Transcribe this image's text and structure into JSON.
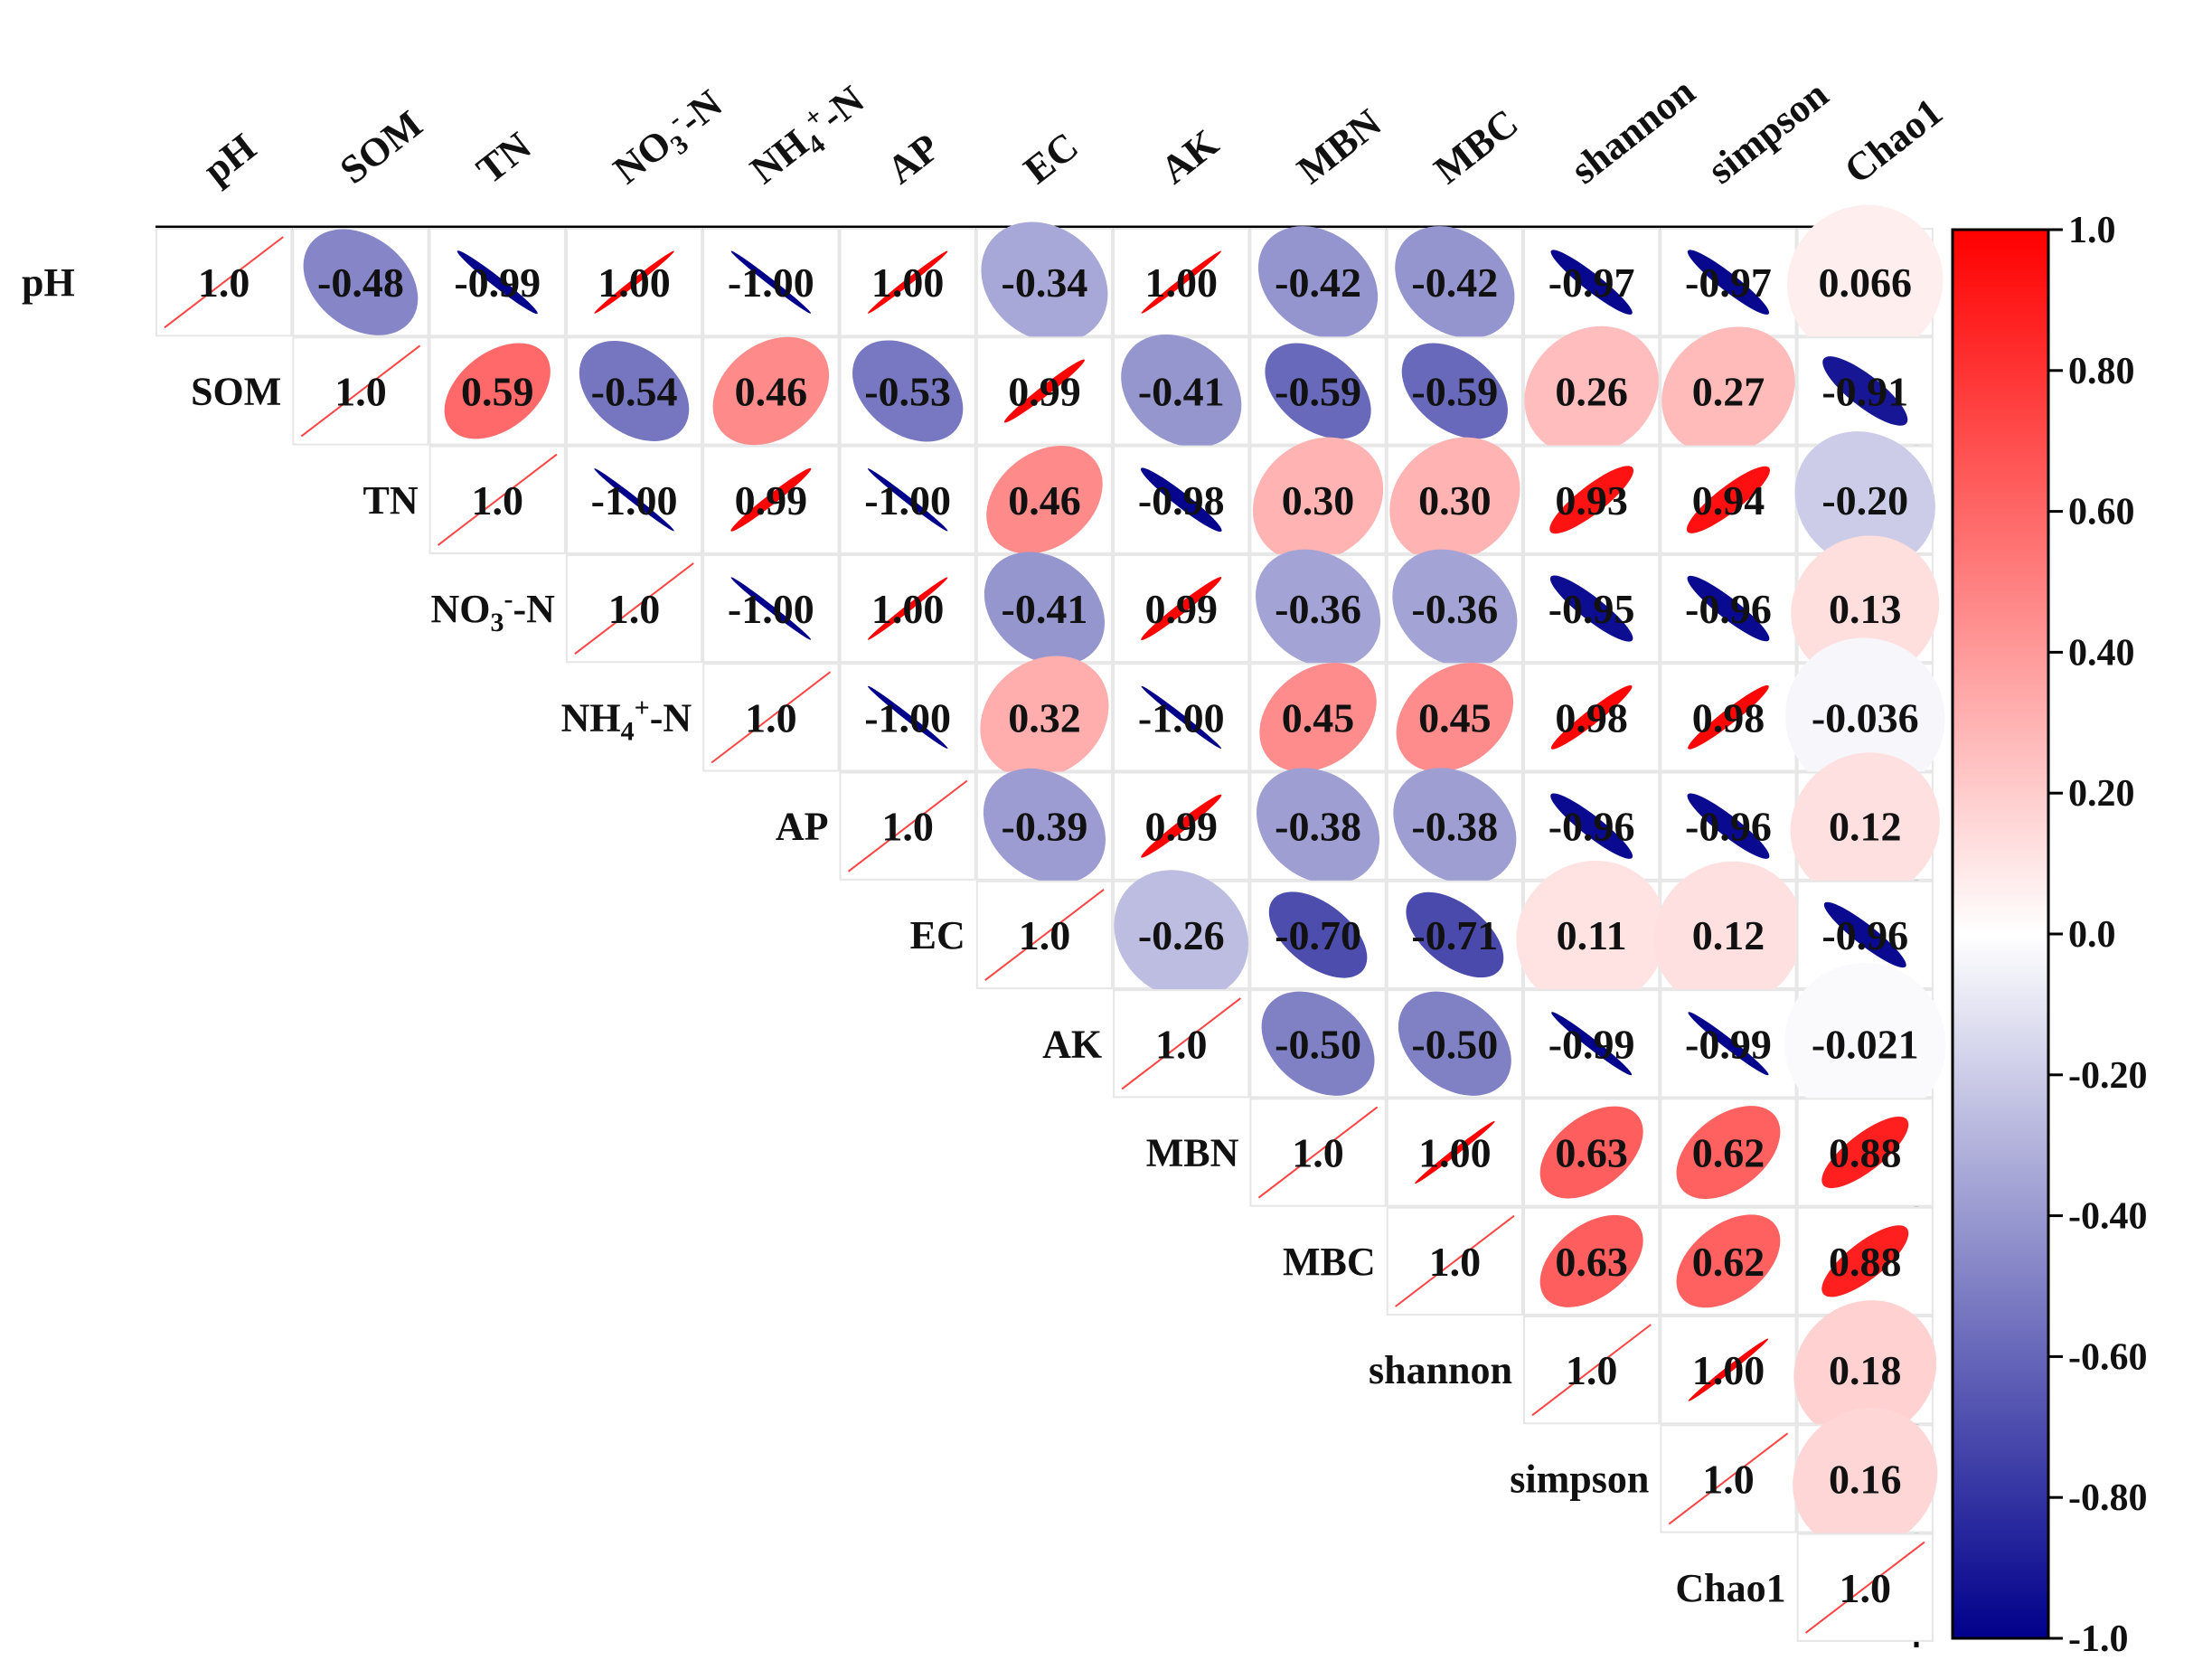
{
  "chart_data": {
    "type": "heatmap",
    "subtype": "correlation-ellipse-upper-triangle",
    "variables": [
      {
        "key": "pH",
        "label": "pH"
      },
      {
        "key": "SOM",
        "label": "SOM"
      },
      {
        "key": "TN",
        "label": "TN"
      },
      {
        "key": "NO3-N",
        "label": "NO3-N",
        "base": "NO",
        "sub": "3",
        "sup": "-",
        "suffix": "-N"
      },
      {
        "key": "NH4-N",
        "label": "NH4+-N",
        "base": "NH",
        "sub": "4",
        "sup": "+",
        "suffix": "-N"
      },
      {
        "key": "AP",
        "label": "AP"
      },
      {
        "key": "EC",
        "label": "EC"
      },
      {
        "key": "AK",
        "label": "AK"
      },
      {
        "key": "MBN",
        "label": "MBN"
      },
      {
        "key": "MBC",
        "label": "MBC"
      },
      {
        "key": "shannon",
        "label": "shannon"
      },
      {
        "key": "simpson",
        "label": "simpson"
      },
      {
        "key": "Chao1",
        "label": "Chao1"
      }
    ],
    "upper_triangle": [
      [
        1.0,
        -0.48,
        -0.99,
        1.0,
        -1.0,
        1.0,
        -0.34,
        1.0,
        -0.42,
        -0.42,
        -0.97,
        -0.97,
        0.066
      ],
      [
        1.0,
        0.59,
        -0.54,
        0.46,
        -0.53,
        0.99,
        -0.41,
        -0.59,
        -0.59,
        0.26,
        0.27,
        -0.91
      ],
      [
        1.0,
        -1.0,
        0.99,
        -1.0,
        0.46,
        -0.98,
        0.3,
        0.3,
        0.93,
        0.94,
        -0.2
      ],
      [
        1.0,
        -1.0,
        1.0,
        -0.41,
        0.99,
        -0.36,
        -0.36,
        -0.95,
        -0.96,
        0.13
      ],
      [
        1.0,
        -1.0,
        0.32,
        -1.0,
        0.45,
        0.45,
        0.98,
        0.98,
        -0.036
      ],
      [
        1.0,
        -0.39,
        0.99,
        -0.38,
        -0.38,
        -0.96,
        -0.96,
        0.12
      ],
      [
        1.0,
        -0.26,
        -0.7,
        -0.71,
        0.11,
        0.12,
        -0.96
      ],
      [
        1.0,
        -0.5,
        -0.5,
        -0.99,
        -0.99,
        -0.021
      ],
      [
        1.0,
        1.0,
        0.63,
        0.62,
        0.88
      ],
      [
        1.0,
        0.63,
        0.62,
        0.88
      ],
      [
        1.0,
        1.0,
        0.18
      ],
      [
        1.0,
        0.16
      ],
      [
        1.0
      ]
    ],
    "display_labels": [
      [
        "1.0",
        "-0.48",
        "-0.99",
        "1.00",
        "-1.00",
        "1.00",
        "-0.34",
        "1.00",
        "-0.42",
        "-0.42",
        "-0.97",
        "-0.97",
        "0.066"
      ],
      [
        "1.0",
        "0.59",
        "-0.54",
        "0.46",
        "-0.53",
        "0.99",
        "-0.41",
        "-0.59",
        "-0.59",
        "0.26",
        "0.27",
        "-0.91"
      ],
      [
        "1.0",
        "-1.00",
        "0.99",
        "-1.00",
        "0.46",
        "-0.98",
        "0.30",
        "0.30",
        "0.93",
        "0.94",
        "-0.20"
      ],
      [
        "1.0",
        "-1.00",
        "1.00",
        "-0.41",
        "0.99",
        "-0.36",
        "-0.36",
        "-0.95",
        "-0.96",
        "0.13"
      ],
      [
        "1.0",
        "-1.00",
        "0.32",
        "-1.00",
        "0.45",
        "0.45",
        "0.98",
        "0.98",
        "-0.036"
      ],
      [
        "1.0",
        "-0.39",
        "0.99",
        "-0.38",
        "-0.38",
        "-0.96",
        "-0.96",
        "0.12"
      ],
      [
        "1.0",
        "-0.26",
        "-0.70",
        "-0.71",
        "0.11",
        "0.12",
        "-0.96"
      ],
      [
        "1.0",
        "-0.50",
        "-0.50",
        "-0.99",
        "-0.99",
        "-0.021"
      ],
      [
        "1.0",
        "1.00",
        "0.63",
        "0.62",
        "0.88"
      ],
      [
        "1.0",
        "0.63",
        "0.62",
        "0.88"
      ],
      [
        "1.0",
        "1.00",
        "0.18"
      ],
      [
        "1.0",
        "0.16"
      ],
      [
        "1.0"
      ]
    ],
    "colorbar": {
      "range": [
        -1.0,
        1.0
      ],
      "ticks": [
        "1.0",
        "0.80",
        "0.60",
        "0.40",
        "0.20",
        "0.0",
        "-0.20",
        "-0.40",
        "-0.60",
        "-0.80",
        "-1.0"
      ],
      "colors": {
        "negative": "#00008B",
        "zero": "#FFFFFF",
        "positive": "#FF0000"
      }
    },
    "diagonal_line_color": "#FF4444"
  }
}
